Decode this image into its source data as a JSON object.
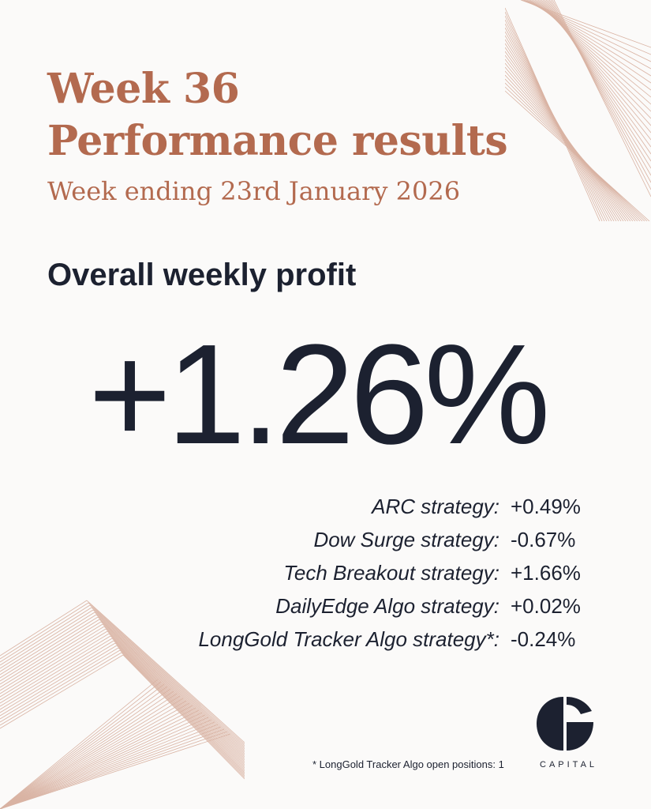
{
  "header": {
    "title_line1": "Week 36",
    "title_line2": "Performance results",
    "subtitle": "Week ending 23rd January 2026"
  },
  "summary": {
    "heading": "Overall weekly profit",
    "value": "+1.26%"
  },
  "strategies": [
    {
      "label": "ARC strategy:",
      "value": "+0.49%"
    },
    {
      "label": "Dow Surge strategy:",
      "value": "-0.67%"
    },
    {
      "label": "Tech Breakout strategy:",
      "value": "+1.66%"
    },
    {
      "label": "DailyEdge Algo strategy:",
      "value": "+0.02%"
    },
    {
      "label": "LongGold Tracker Algo strategy*:",
      "value": "-0.24%"
    }
  ],
  "footnote": "* LongGold Tracker Algo open positions: 1",
  "logo": {
    "text": "CAPITAL",
    "icon": "g-monogram-logo"
  },
  "colors": {
    "accent": "#b36a4f",
    "ink": "#1c2130",
    "background": "#fbfaf9",
    "line": "#d9b3a3"
  }
}
